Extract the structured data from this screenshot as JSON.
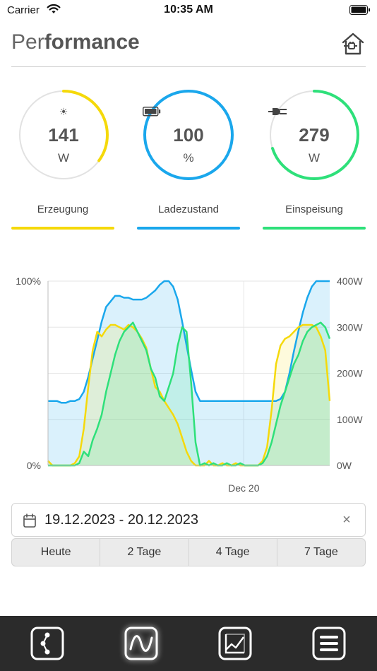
{
  "status_bar": {
    "carrier": "Carrier",
    "time": "10:35 AM"
  },
  "header": {
    "title_light": "Per",
    "title_bold": "formance",
    "home_icon": "house-plug-icon"
  },
  "gauges": [
    {
      "icon": "sun-icon",
      "glyph": "☀",
      "value": "141",
      "unit": "W",
      "fraction": 0.35,
      "color": "#f5d90a"
    },
    {
      "icon": "battery-icon",
      "glyph": "",
      "value": "100",
      "unit": "%",
      "fraction": 1.0,
      "color": "#1aa7ec"
    },
    {
      "icon": "plug-icon",
      "glyph": "",
      "value": "279",
      "unit": "W",
      "fraction": 0.7,
      "color": "#2ee07a"
    }
  ],
  "legend": [
    {
      "label": "Erzeugung",
      "color": "#f5d90a"
    },
    {
      "label": "Ladezustand",
      "color": "#1aa7ec"
    },
    {
      "label": "Einspeisung",
      "color": "#2ee07a"
    }
  ],
  "chart_data": {
    "type": "area",
    "x_tick_labels": [
      "Dec 20"
    ],
    "y_left": {
      "min": 0,
      "max": 100,
      "tick_labels": [
        "100%",
        "0%"
      ]
    },
    "y_right": {
      "min": 0,
      "max": 400,
      "tick_labels": [
        "400W",
        "300W",
        "200W",
        "100W",
        "0W"
      ]
    },
    "grid": true,
    "series": [
      {
        "name": "Ladezustand",
        "axis": "left",
        "color": "#1aa7ec",
        "values": [
          35,
          35,
          35,
          34,
          34,
          35,
          35,
          36,
          40,
          48,
          58,
          68,
          78,
          86,
          89,
          92,
          92,
          91,
          91,
          90,
          90,
          90,
          91,
          93,
          95,
          98,
          100,
          100,
          97,
          90,
          78,
          65,
          52,
          40,
          35,
          35,
          35,
          35,
          35,
          35,
          35,
          35,
          35,
          35,
          35,
          35,
          35,
          35,
          35,
          35,
          35,
          35,
          36,
          40,
          50,
          62,
          73,
          83,
          91,
          97,
          100,
          100,
          100,
          100
        ]
      },
      {
        "name": "Erzeugung",
        "axis": "right",
        "color": "#f5d90a",
        "values": [
          10,
          0,
          0,
          0,
          0,
          0,
          5,
          20,
          80,
          170,
          250,
          290,
          280,
          295,
          305,
          305,
          300,
          295,
          305,
          300,
          290,
          275,
          255,
          210,
          170,
          160,
          140,
          125,
          110,
          90,
          60,
          30,
          10,
          0,
          0,
          0,
          10,
          0,
          0,
          5,
          0,
          0,
          5,
          0,
          0,
          0,
          0,
          0,
          10,
          40,
          120,
          220,
          260,
          275,
          280,
          290,
          300,
          305,
          305,
          305,
          300,
          280,
          250,
          140
        ]
      },
      {
        "name": "Einspeisung",
        "axis": "right",
        "color": "#2ee07a",
        "values": [
          0,
          0,
          0,
          0,
          0,
          0,
          0,
          5,
          30,
          20,
          55,
          80,
          110,
          160,
          200,
          240,
          270,
          290,
          300,
          310,
          290,
          270,
          250,
          210,
          190,
          150,
          140,
          170,
          200,
          260,
          300,
          290,
          180,
          50,
          0,
          5,
          0,
          5,
          0,
          0,
          5,
          0,
          0,
          5,
          0,
          0,
          0,
          0,
          5,
          20,
          50,
          90,
          130,
          160,
          190,
          220,
          240,
          270,
          290,
          300,
          305,
          310,
          300,
          275
        ]
      }
    ]
  },
  "date_filter": {
    "value": "19.12.2023 - 20.12.2023",
    "clear_glyph": "×"
  },
  "range_buttons": [
    "Heute",
    "2 Tage",
    "4 Tage",
    "7 Tage"
  ],
  "tab_bar": [
    {
      "icon": "energy-flow-icon",
      "active": false
    },
    {
      "icon": "performance-wave-icon",
      "active": true
    },
    {
      "icon": "history-chart-icon",
      "active": false
    },
    {
      "icon": "menu-icon",
      "active": false
    }
  ]
}
